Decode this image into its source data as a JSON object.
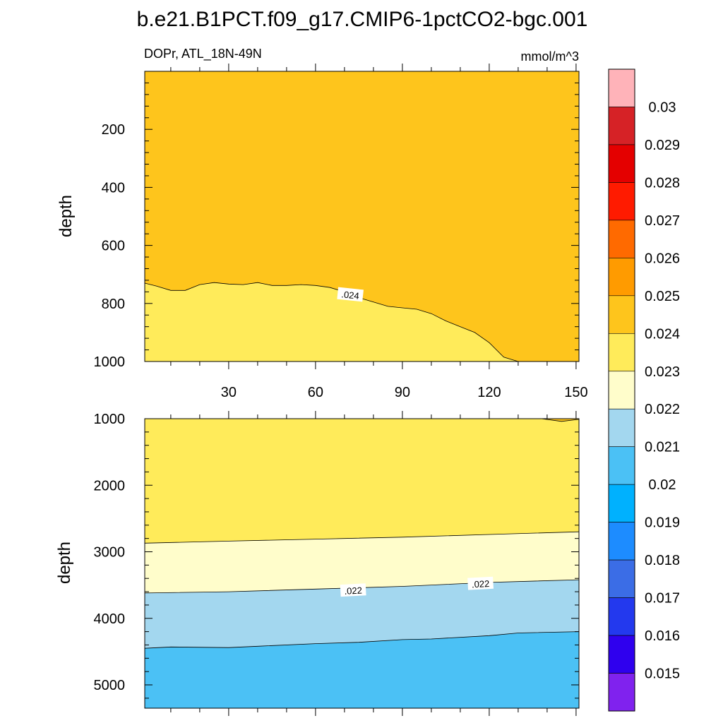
{
  "title": "b.e21.B1PCT.f09_g17.CMIP6-1pctCO2-bgc.001",
  "colors": {
    "upper_band": "#FEC51C",
    "lower_band": "#FFEB5A",
    "light_band": "#FFFDCB",
    "label_bg": "#FFFFFF"
  },
  "chart_data": [
    {
      "type": "contour",
      "name": "upper-panel",
      "left_label": "DOPr, ATL_18N-49N",
      "right_label": "mmol/m^3",
      "xlabel": "",
      "ylabel": "depth",
      "xlim": [
        1,
        151
      ],
      "ylim": [
        0,
        1000
      ],
      "x_ticks": [
        30,
        60,
        90,
        120,
        150
      ],
      "y_ticks": [
        200,
        400,
        600,
        800,
        1000
      ],
      "regions": [
        {
          "level_range": "0.024-0.025",
          "color": "#FEC51C",
          "side": "above",
          "boundary": "contour_024"
        },
        {
          "level_range": "0.023-0.024",
          "color": "#FFEB5A",
          "side": "below",
          "boundary": "contour_024"
        }
      ],
      "contour_024": {
        "x": [
          1,
          5,
          10,
          15,
          20,
          25,
          30,
          35,
          40,
          45,
          50,
          55,
          60,
          65,
          70,
          75,
          80,
          85,
          90,
          95,
          100,
          105,
          110,
          115,
          120,
          125,
          130,
          135,
          138
        ],
        "depth": [
          730,
          740,
          755,
          755,
          735,
          728,
          733,
          735,
          728,
          738,
          738,
          735,
          738,
          745,
          760,
          780,
          795,
          810,
          815,
          820,
          835,
          860,
          880,
          900,
          935,
          985,
          1000,
          1000,
          1000
        ]
      },
      "contour_labels": [
        {
          "text": ".024",
          "x": 72,
          "depth": 770
        }
      ]
    },
    {
      "type": "contour",
      "name": "lower-panel",
      "xlabel": "",
      "ylabel": "depth",
      "xlim": [
        1,
        151
      ],
      "ylim": [
        1000,
        5350
      ],
      "x_ticks": [
        30,
        60,
        90,
        120,
        150
      ],
      "y_ticks": [
        1000,
        2000,
        3000,
        4000,
        5000
      ],
      "bands": [
        {
          "level_range": "0.023-0.024",
          "color": "#FFEB5A",
          "top": "surface",
          "bottom": "contour_023"
        },
        {
          "level_range": "0.022-0.023",
          "color": "#FFFDCB",
          "top": "contour_023",
          "bottom": "contour_022"
        },
        {
          "level_range": "0.021-0.022",
          "color": "#A3D7EF",
          "top": "contour_022",
          "bottom": "contour_021"
        },
        {
          "level_range": "0.020-0.021",
          "color": "#4BC1F5",
          "top": "contour_021",
          "bottom": "floor"
        }
      ],
      "contour_023": {
        "x": [
          1,
          30,
          60,
          90,
          120,
          151
        ],
        "depth": [
          2870,
          2840,
          2810,
          2780,
          2740,
          2700
        ]
      },
      "contour_022": {
        "x": [
          1,
          30,
          60,
          90,
          120,
          151
        ],
        "depth": [
          3620,
          3600,
          3560,
          3520,
          3460,
          3420
        ]
      },
      "contour_021": {
        "x": [
          1,
          10,
          30,
          40,
          60,
          75,
          90,
          100,
          120,
          130,
          151
        ],
        "depth": [
          4450,
          4430,
          4440,
          4420,
          4380,
          4360,
          4320,
          4310,
          4260,
          4220,
          4200
        ]
      },
      "contour_024_corner": {
        "x": [
          138,
          145,
          151
        ],
        "depth": [
          1000,
          1040,
          1010
        ]
      },
      "contour_labels": [
        {
          "text": ".022",
          "x": 73,
          "depth": 3580
        },
        {
          "text": ".022",
          "x": 117,
          "depth": 3480
        }
      ]
    }
  ],
  "colorbar": {
    "levels": [
      "0.03",
      "0.029",
      "0.028",
      "0.027",
      "0.026",
      "0.025",
      "0.024",
      "0.023",
      "0.022",
      "0.021",
      "0.02",
      "0.019",
      "0.018",
      "0.017",
      "0.016",
      "0.015"
    ],
    "colors": [
      "#FFB3B9",
      "#D62226",
      "#E40000",
      "#FF1B00",
      "#FF6A00",
      "#FF9B00",
      "#FEC51C",
      "#FFEB5A",
      "#FFFDCB",
      "#A3D7EF",
      "#4BC1F5",
      "#00B1FE",
      "#1D8CFF",
      "#3B6DE6",
      "#2339EE",
      "#2F00EE",
      "#8022EE"
    ]
  }
}
